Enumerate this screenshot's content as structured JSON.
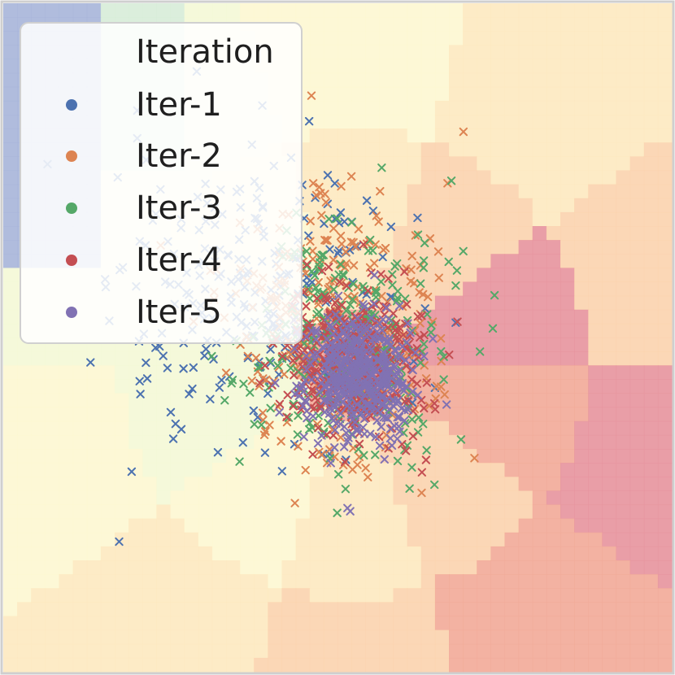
{
  "chart_data": {
    "type": "scatter",
    "title": "",
    "xlabel": "",
    "ylabel": "",
    "grid": false,
    "legend": {
      "title": "Iteration",
      "placement": "top-left"
    },
    "marker": "x",
    "series": [
      {
        "name": "Iter-1",
        "color": "#4c72b0",
        "count": 260,
        "center": [
          -0.22,
          0.08
        ],
        "spread": [
          0.22,
          0.23
        ]
      },
      {
        "name": "Iter-2",
        "color": "#dd8452",
        "count": 300,
        "center": [
          -0.02,
          0.03
        ],
        "spread": [
          0.16,
          0.21
        ]
      },
      {
        "name": "Iter-3",
        "color": "#55a868",
        "count": 300,
        "center": [
          0.03,
          -0.03
        ],
        "spread": [
          0.14,
          0.17
        ]
      },
      {
        "name": "Iter-4",
        "color": "#c44e52",
        "count": 360,
        "center": [
          0.05,
          -0.06
        ],
        "spread": [
          0.1,
          0.12
        ]
      },
      {
        "name": "Iter-5",
        "color": "#8172b3",
        "count": 460,
        "center": [
          0.06,
          -0.11
        ],
        "spread": [
          0.08,
          0.1
        ]
      }
    ],
    "background": {
      "type": "decision-regions",
      "palette": [
        "#a7b5d9",
        "#d7ecd8",
        "#f4f8d6",
        "#fdf7d2",
        "#fde9c0",
        "#fbd3ae",
        "#f2aa98",
        "#e7949d"
      ]
    },
    "xlim": [
      -1,
      1
    ],
    "ylim": [
      -1,
      1
    ]
  }
}
